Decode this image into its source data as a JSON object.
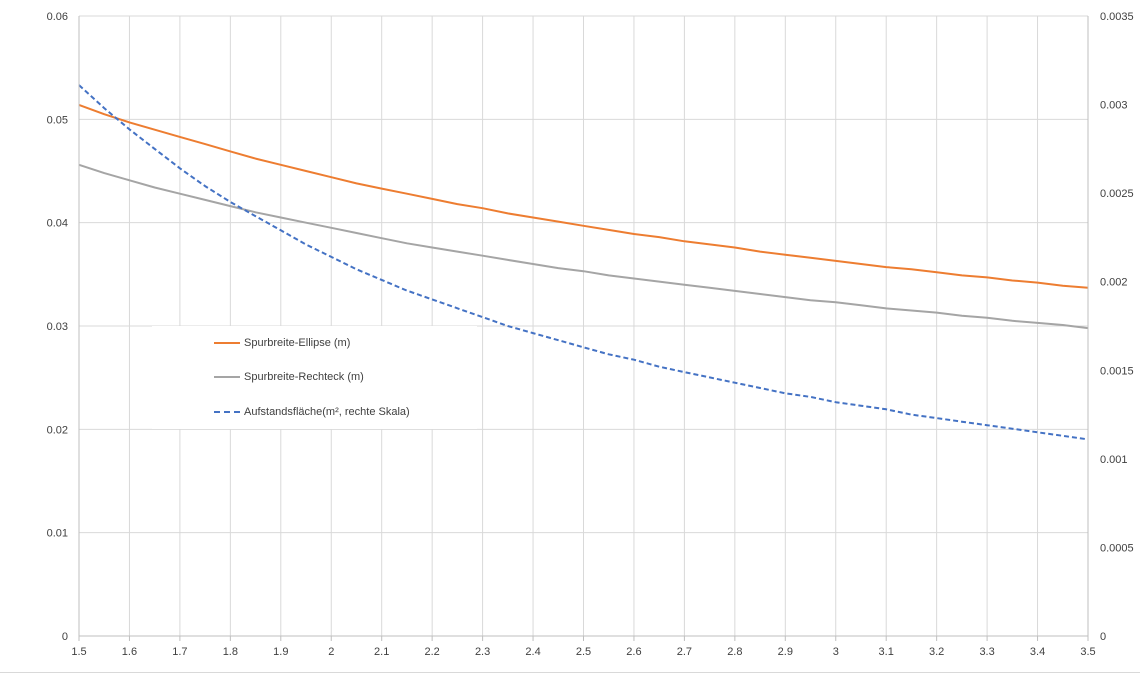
{
  "chart_data": {
    "type": "line",
    "x": [
      1.5,
      1.55,
      1.6,
      1.65,
      1.7,
      1.75,
      1.8,
      1.85,
      1.9,
      1.95,
      2.0,
      2.05,
      2.1,
      2.15,
      2.2,
      2.25,
      2.3,
      2.35,
      2.4,
      2.45,
      2.5,
      2.55,
      2.6,
      2.65,
      2.7,
      2.75,
      2.8,
      2.85,
      2.9,
      2.95,
      3.0,
      3.05,
      3.1,
      3.15,
      3.2,
      3.25,
      3.3,
      3.35,
      3.4,
      3.45,
      3.5
    ],
    "xlim": [
      1.5,
      3.5
    ],
    "xticks": [
      "1.5",
      "1.6",
      "1.7",
      "1.8",
      "1.9",
      "2",
      "2.1",
      "2.2",
      "2.3",
      "2.4",
      "2.5",
      "2.6",
      "2.7",
      "2.8",
      "2.9",
      "3",
      "3.1",
      "3.2",
      "3.3",
      "3.4",
      "3.5"
    ],
    "ylim": [
      0,
      0.06
    ],
    "yticks": [
      "0",
      "0.01",
      "0.02",
      "0.03",
      "0.04",
      "0.05",
      "0.06"
    ],
    "y2lim": [
      0,
      0.0035
    ],
    "y2ticks": [
      "0",
      "0.0005",
      "0.001",
      "0.0015",
      "0.002",
      "0.0025",
      "0.003",
      "0.0035"
    ],
    "grid": true,
    "legend_position": "center-left",
    "series": [
      {
        "name": "Spurbreite-Ellipse (m)",
        "color": "#ED7D31",
        "style": "solid",
        "axis": "left",
        "values": [
          0.0514,
          0.0505,
          0.0497,
          0.049,
          0.0483,
          0.0476,
          0.0469,
          0.0462,
          0.0456,
          0.045,
          0.0444,
          0.0438,
          0.0433,
          0.0428,
          0.0423,
          0.0418,
          0.0414,
          0.0409,
          0.0405,
          0.0401,
          0.0397,
          0.0393,
          0.0389,
          0.0386,
          0.0382,
          0.0379,
          0.0376,
          0.0372,
          0.0369,
          0.0366,
          0.0363,
          0.036,
          0.0357,
          0.0355,
          0.0352,
          0.0349,
          0.0347,
          0.0344,
          0.0342,
          0.0339,
          0.0337
        ]
      },
      {
        "name": "Spurbreite-Rechteck (m)",
        "color": "#A5A5A5",
        "style": "solid",
        "axis": "left",
        "values": [
          0.0456,
          0.0448,
          0.0441,
          0.0434,
          0.0428,
          0.0422,
          0.0416,
          0.041,
          0.0405,
          0.04,
          0.0395,
          0.039,
          0.0385,
          0.038,
          0.0376,
          0.0372,
          0.0368,
          0.0364,
          0.036,
          0.0356,
          0.0353,
          0.0349,
          0.0346,
          0.0343,
          0.034,
          0.0337,
          0.0334,
          0.0331,
          0.0328,
          0.0325,
          0.0323,
          0.032,
          0.0317,
          0.0315,
          0.0313,
          0.031,
          0.0308,
          0.0305,
          0.0303,
          0.0301,
          0.0298
        ]
      },
      {
        "name": "Aufstandsfläche(m², rechte Skala)",
        "color": "#4472C4",
        "style": "dashed",
        "axis": "right",
        "values": [
          0.00311,
          0.00298,
          0.00286,
          0.00275,
          0.00264,
          0.00254,
          0.00245,
          0.00237,
          0.00229,
          0.00221,
          0.00214,
          0.00207,
          0.00201,
          0.00195,
          0.0019,
          0.00185,
          0.0018,
          0.00175,
          0.00171,
          0.00167,
          0.00163,
          0.00159,
          0.00156,
          0.00152,
          0.00149,
          0.00146,
          0.00143,
          0.0014,
          0.00137,
          0.00135,
          0.00132,
          0.0013,
          0.00128,
          0.00125,
          0.00123,
          0.00121,
          0.00119,
          0.00117,
          0.00115,
          0.00113,
          0.00111
        ]
      }
    ]
  }
}
